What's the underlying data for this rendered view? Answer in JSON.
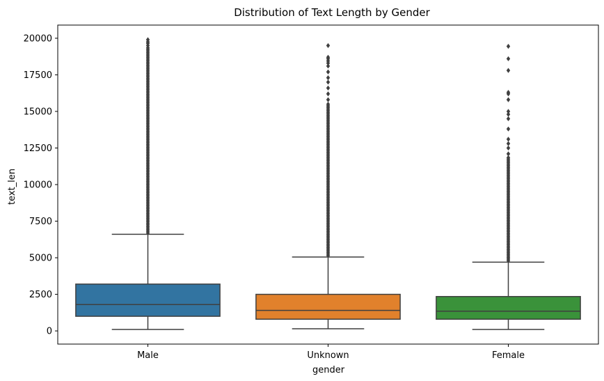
{
  "chart_data": {
    "type": "box",
    "title": "Distribution of Text Length by Gender",
    "xlabel": "gender",
    "ylabel": "text_len",
    "ylim": [
      -900,
      20900
    ],
    "yticks": [
      0,
      2500,
      5000,
      7500,
      10000,
      12500,
      15000,
      17500,
      20000
    ],
    "categories": [
      "Male",
      "Unknown",
      "Female"
    ],
    "colors": [
      "#3274a1",
      "#e1812c",
      "#3a923a"
    ],
    "boxes": [
      {
        "name": "Male",
        "whisker_low": 100,
        "q1": 1000,
        "median": 1800,
        "q3": 3200,
        "whisker_high": 6600,
        "flier_max": 19900
      },
      {
        "name": "Unknown",
        "whisker_low": 150,
        "q1": 800,
        "median": 1400,
        "q3": 2500,
        "whisker_high": 5050,
        "flier_max": 19500
      },
      {
        "name": "Female",
        "whisker_low": 100,
        "q1": 800,
        "median": 1350,
        "q3": 2350,
        "whisker_high": 4700,
        "flier_max": 19450
      }
    ],
    "outliers": [
      {
        "name": "Male",
        "dense_to": 19300,
        "values": [
          19350,
          19500,
          19650,
          19750,
          19900
        ]
      },
      {
        "name": "Unknown",
        "dense_to": 15500,
        "values": [
          15800,
          16200,
          16600,
          17000,
          17300,
          17700,
          18100,
          18300,
          18450,
          18600,
          18700,
          19500
        ]
      },
      {
        "name": "Female",
        "dense_to": 11900,
        "values": [
          12100,
          12500,
          12800,
          13100,
          13800,
          14500,
          14800,
          15000,
          15800,
          16200,
          16300,
          17800,
          18600,
          19450
        ]
      }
    ],
    "grid": false,
    "legend": "none"
  }
}
